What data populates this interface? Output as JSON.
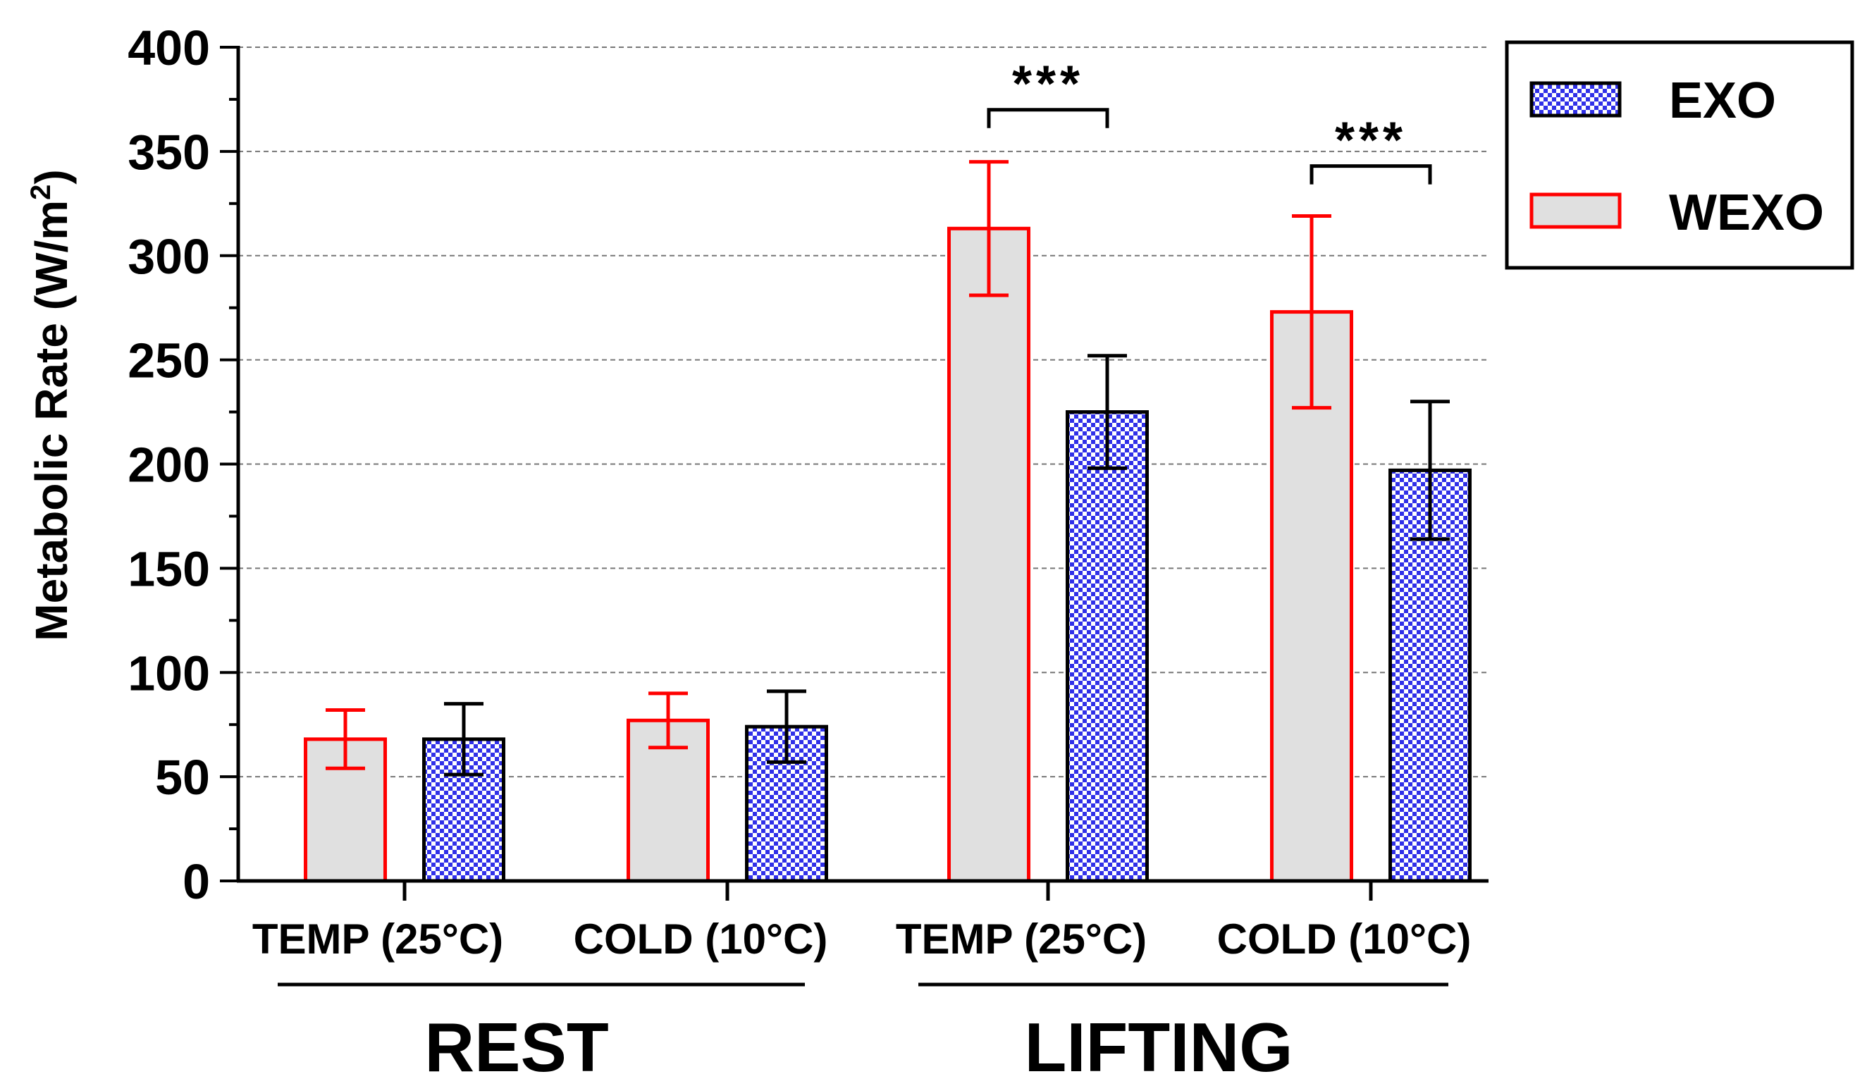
{
  "chart_data": {
    "type": "bar",
    "title": "",
    "ylabel": "Metabolic Rate (W/m",
    "ylabel_sup": "2",
    "ylabel_close": ")",
    "ylim": [
      0,
      400
    ],
    "yticks": [
      0,
      50,
      100,
      150,
      200,
      250,
      300,
      350,
      400
    ],
    "grid": true,
    "legend_position": "top-right",
    "categories": [
      "TEMP (25°C)",
      "COLD (10°C)",
      "TEMP (25°C)",
      "COLD (10°C)"
    ],
    "groups": [
      {
        "label": "REST",
        "categories": [
          0,
          1
        ]
      },
      {
        "label": "LIFTING",
        "categories": [
          2,
          3
        ]
      }
    ],
    "series": [
      {
        "name": "WEXO",
        "fill": "#e0e0e0",
        "stroke": "#ff0000",
        "values": [
          68,
          77,
          313,
          273
        ],
        "errors": [
          14,
          13,
          32,
          46
        ]
      },
      {
        "name": "EXO",
        "fill": "checker",
        "stroke": "#000000",
        "values": [
          68,
          74,
          225,
          197
        ],
        "errors": [
          17,
          17,
          27,
          33
        ]
      }
    ],
    "legend": [
      {
        "name": "EXO",
        "fill": "checker",
        "stroke": "#000000"
      },
      {
        "name": "WEXO",
        "fill": "#e0e0e0",
        "stroke": "#ff0000"
      }
    ],
    "annotations": [
      {
        "category": 2,
        "text": "***",
        "bracket_value": 370
      },
      {
        "category": 3,
        "text": "***",
        "bracket_value": 343
      }
    ]
  },
  "colors": {
    "wexo_fill": "#e0e0e0",
    "wexo_stroke": "#ff0000",
    "exo_stroke": "#000000",
    "checker_blue": "#3030e8",
    "grid": "#777777"
  }
}
